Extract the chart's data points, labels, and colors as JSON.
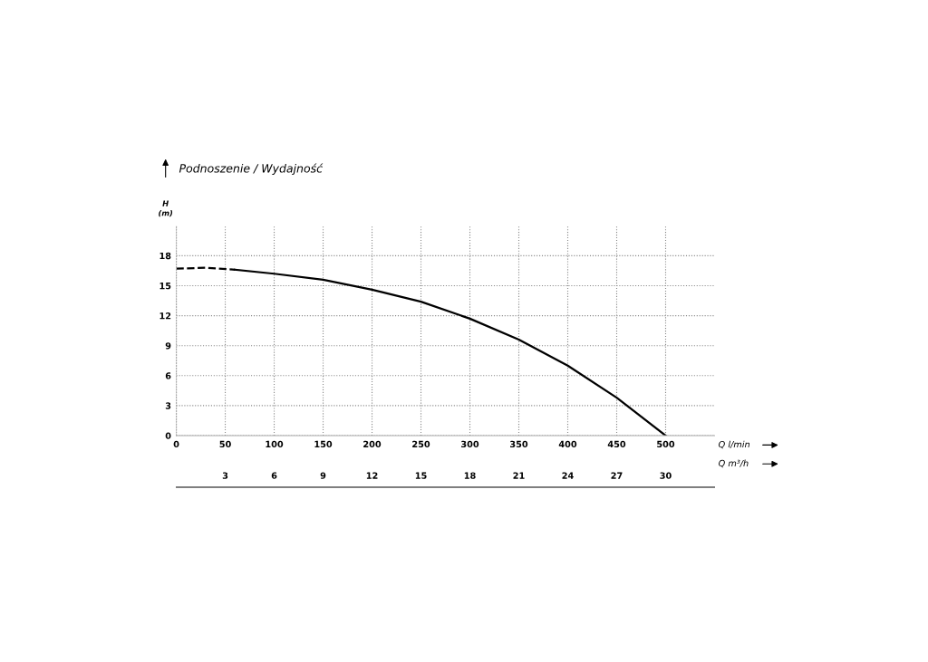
{
  "chart_data": {
    "type": "line",
    "title": "Podnoszenie / Wydajność",
    "ylabel": "H\n(m)",
    "xlabel": "Q l/min",
    "x2label": "Q m³/h",
    "series": [
      {
        "color": "#000000",
        "line_style": "dashed",
        "x": [
          0,
          30,
          60
        ],
        "values": [
          16.7,
          16.8,
          16.6
        ]
      },
      {
        "color": "#000000",
        "line_style": "solid",
        "x": [
          60,
          100,
          150,
          200,
          250,
          300,
          350,
          400,
          450,
          500
        ],
        "values": [
          16.6,
          16.2,
          15.6,
          14.6,
          13.4,
          11.7,
          9.6,
          7.0,
          3.8,
          0
        ]
      }
    ],
    "xlim": [
      0,
      550
    ],
    "xticks": [
      0,
      50,
      100,
      150,
      200,
      250,
      300,
      350,
      400,
      450,
      500
    ],
    "x2lim": [
      0,
      33
    ],
    "x2ticks": [
      3,
      6,
      9,
      12,
      15,
      18,
      21,
      24,
      27,
      30
    ],
    "ylim": [
      0,
      21
    ],
    "yticks": [
      0,
      3,
      6,
      9,
      12,
      15,
      18
    ],
    "grid": true,
    "marker": "none"
  }
}
